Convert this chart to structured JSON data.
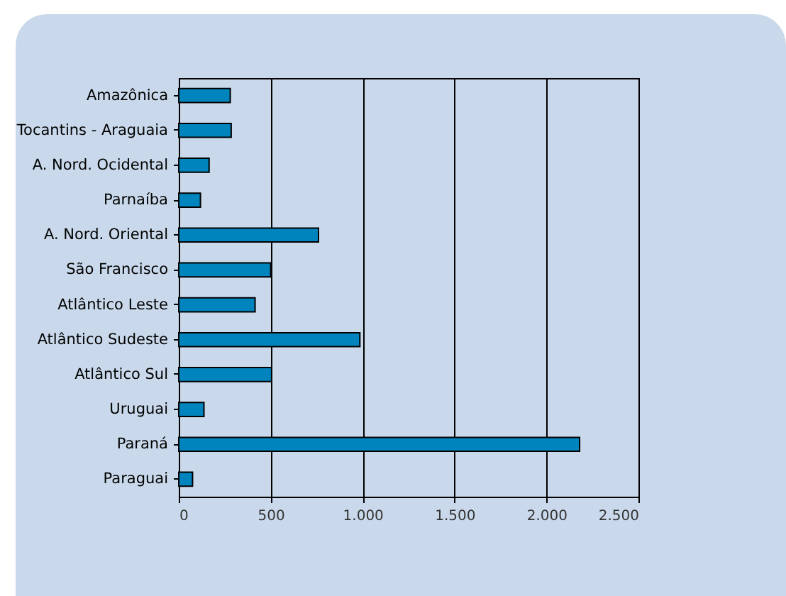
{
  "chart_data": {
    "type": "bar",
    "orientation": "horizontal",
    "categories": [
      "Amazônica",
      "Tocantins - Araguaia",
      "A. Nord. Ocidental",
      "Parnaíba",
      "A. Nord. Oriental",
      "São Francisco",
      "Atlântico Leste",
      "Atlântico Sudeste",
      "Atlântico Sul",
      "Uruguai",
      "Paraná",
      "Paraguai"
    ],
    "values": [
      280,
      285,
      165,
      118,
      760,
      500,
      415,
      985,
      505,
      137,
      2180,
      75
    ],
    "color": "#0084bd",
    "xlim": [
      0,
      2500
    ],
    "xticks": [
      0,
      500,
      {
        "value": 1000,
        "label": "1.000"
      },
      {
        "value": 1500,
        "label": "1.500"
      },
      {
        "value": 2000,
        "label": "2.000"
      },
      {
        "value": 2500,
        "label": "2.500"
      }
    ],
    "grid": "x"
  }
}
